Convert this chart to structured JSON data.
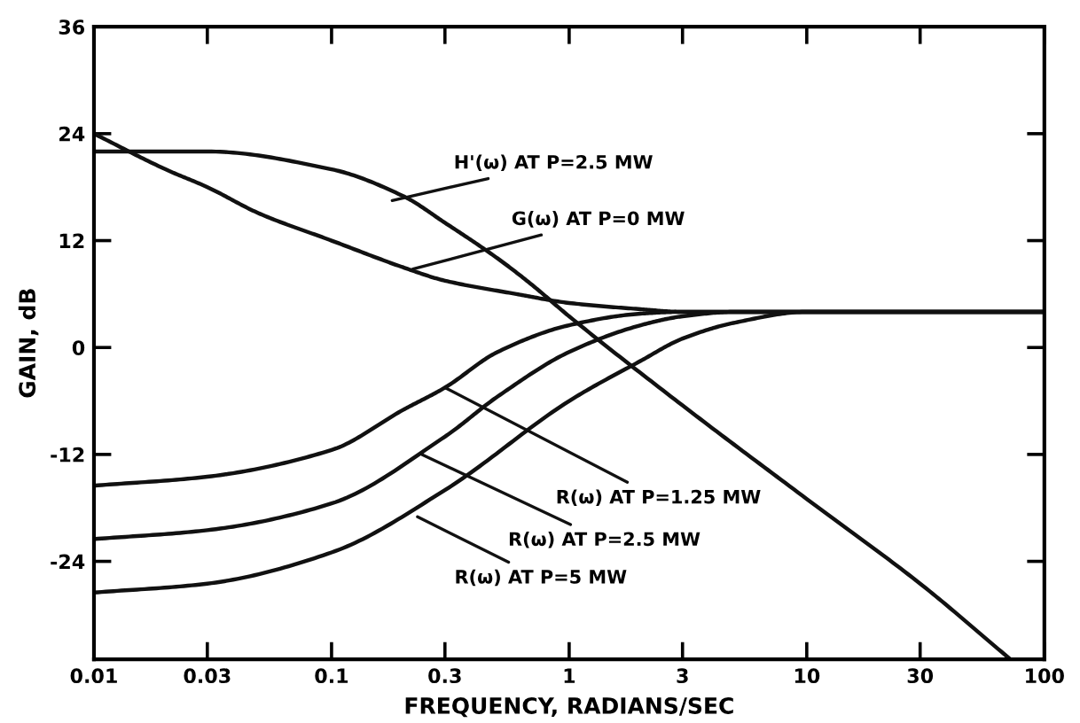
{
  "chart_data": {
    "type": "line",
    "xlabel": "FREQUENCY, RADIANS/SEC",
    "ylabel": "GAIN, dB",
    "log": "x",
    "xlim": [
      0.01,
      100
    ],
    "xticks": [
      {
        "value": 0.01,
        "label": "0.01"
      },
      {
        "value": 0.03,
        "label": "0.03"
      },
      {
        "value": 0.1,
        "label": "0.1"
      },
      {
        "value": 0.3,
        "label": "0.3"
      },
      1,
      3,
      10,
      30,
      100
    ],
    "ylim": [
      -35,
      36
    ],
    "yticks": [
      -24,
      -12,
      0,
      12,
      24,
      36
    ],
    "grid": false,
    "marker": "none",
    "line_style": "solid",
    "series": [
      {
        "color": "#111111",
        "x": [
          0.01,
          0.03,
          0.1,
          0.2,
          0.3,
          0.5,
          0.7,
          1,
          3,
          10,
          30,
          72
        ],
        "values": [
          22,
          22,
          20,
          17,
          14,
          10,
          7,
          3.5,
          -6.5,
          -17,
          -26.5,
          -35
        ]
      },
      {
        "color": "#111111",
        "x": [
          0.01,
          0.02,
          0.03,
          0.05,
          0.1,
          0.2,
          0.3,
          0.6,
          1,
          2,
          3,
          100
        ],
        "values": [
          24,
          20,
          18,
          15,
          12,
          9,
          7.5,
          6,
          5,
          4.3,
          4,
          4
        ]
      },
      {
        "color": "#111111",
        "x": [
          0.01,
          0.03,
          0.1,
          0.2,
          0.3,
          0.5,
          1,
          2,
          3,
          100
        ],
        "values": [
          -15.5,
          -14.5,
          -11.5,
          -7,
          -4.5,
          -0.5,
          2.5,
          3.8,
          4,
          4
        ]
      },
      {
        "color": "#111111",
        "x": [
          0.01,
          0.03,
          0.1,
          0.3,
          0.5,
          1,
          2,
          3,
          5,
          100
        ],
        "values": [
          -21.5,
          -20.5,
          -17.5,
          -10,
          -5.5,
          -0.5,
          2.5,
          3.5,
          4,
          4
        ]
      },
      {
        "color": "#111111",
        "x": [
          0.01,
          0.03,
          0.1,
          0.3,
          1,
          2,
          3,
          5,
          10,
          100
        ],
        "values": [
          -27.5,
          -26.5,
          -23,
          -16,
          -6,
          -1.5,
          1,
          2.8,
          4,
          4
        ]
      }
    ],
    "annotations": [
      {
        "text": "H'(ω) AT P=2.5 MW",
        "x": 0.18,
        "y": 16.5
      },
      {
        "text": "G(ω) AT P=0 MW",
        "x": 0.22,
        "y": 8.8
      },
      {
        "text": "R(ω) AT P=1.25 MW",
        "x": 0.3,
        "y": -4.5
      },
      {
        "text": "R(ω) AT P=2.5 MW",
        "x": 0.24,
        "y": -12
      },
      {
        "text": "R(ω) AT P=5 MW",
        "x": 0.23,
        "y": -19
      }
    ]
  }
}
